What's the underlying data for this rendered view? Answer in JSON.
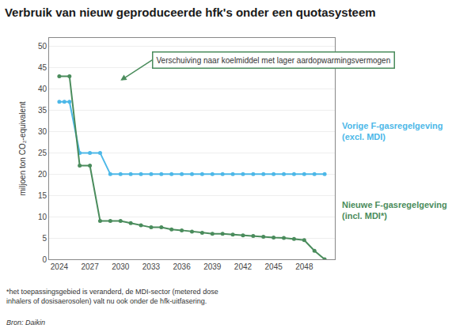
{
  "chart_data": {
    "type": "line",
    "title": "Verbruik van nieuw geproduceerde hfk's onder een quotasysteem",
    "ylabel": "miljoen ton CO₂-equivalent",
    "series": [
      {
        "name": "Vorige F-gasregelgeving\n(excl. MDI)",
        "color": "#4db8e8",
        "marker": "circle",
        "x": [
          2024,
          2024.5,
          2025,
          2026,
          2027,
          2028,
          2029,
          2030,
          2031,
          2032,
          2033,
          2034,
          2035,
          2036,
          2037,
          2038,
          2039,
          2040,
          2041,
          2042,
          2043,
          2044,
          2045,
          2046,
          2047,
          2048,
          2049,
          2050
        ],
        "values": [
          37,
          37,
          37,
          25,
          25,
          25,
          20,
          20,
          20,
          20,
          20,
          20,
          20,
          20,
          20,
          20,
          20,
          20,
          20,
          20,
          20,
          20,
          20,
          20,
          20,
          20,
          20,
          20
        ]
      },
      {
        "name": "Nieuwe F-gasregelgeving\n(incl. MDI*)",
        "color": "#4a8c5c",
        "marker": "circle",
        "x": [
          2024,
          2025,
          2026,
          2027,
          2028,
          2029,
          2030,
          2031,
          2032,
          2033,
          2034,
          2035,
          2036,
          2037,
          2038,
          2039,
          2040,
          2041,
          2042,
          2043,
          2044,
          2045,
          2046,
          2047,
          2048,
          2049,
          2050
        ],
        "values": [
          43,
          43,
          22,
          22,
          9,
          9,
          9,
          8.5,
          8,
          7.5,
          7.5,
          7,
          6.8,
          6.5,
          6.2,
          6,
          6,
          5.8,
          5.6,
          5.5,
          5.3,
          5.1,
          5.0,
          4.8,
          4.5,
          2,
          0
        ]
      }
    ],
    "annotation": {
      "text": "Verschuiving naar koelmiddel met lager aardopwarmingsvermogen",
      "x": 2030,
      "y": 42
    },
    "footnotes": [
      "*het toepassingsgebied is veranderd, de MDI-sector (metered dose inhalers of dosisaerosolen) valt nu ook onder de hfk-uitfasering.",
      "Bron: Daikin"
    ],
    "xlim": [
      2023,
      2051
    ],
    "ylim": [
      0,
      52
    ],
    "xticks": [
      2024,
      2027,
      2030,
      2033,
      2036,
      2039,
      2042,
      2045,
      2048
    ],
    "yticks": [
      0,
      5,
      10,
      15,
      20,
      25,
      30,
      35,
      40,
      45,
      50
    ],
    "grid": "y"
  }
}
